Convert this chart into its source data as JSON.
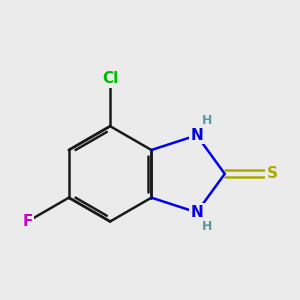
{
  "background_color": "#ebebeb",
  "bond_color": "#1a1a1a",
  "bond_width": 1.8,
  "atom_colors": {
    "N": "#0000ee",
    "S": "#aaaa00",
    "Cl": "#00bb00",
    "F": "#cc00cc",
    "H": "#5599aa"
  },
  "font_size_atom": 11,
  "font_size_h": 9,
  "figsize": [
    3.0,
    3.0
  ],
  "dpi": 100
}
